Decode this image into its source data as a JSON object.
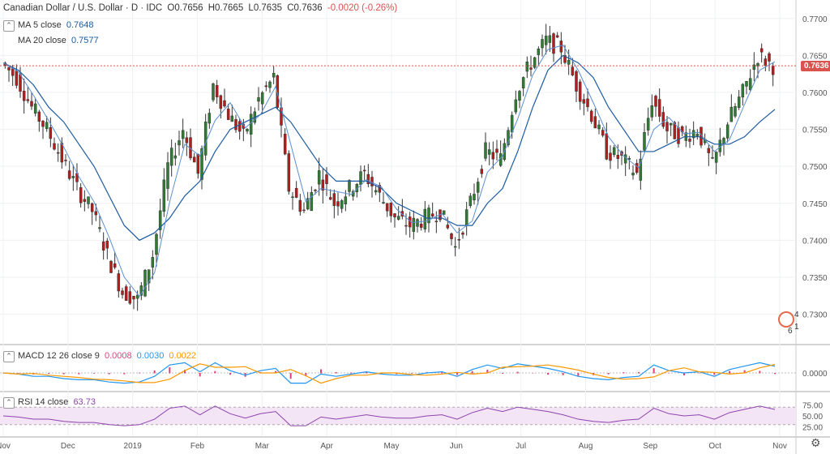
{
  "header": {
    "symbol": "Canadian Dollar / U.S. Dollar · D · IDC",
    "open": "O0.7656",
    "high": "H0.7665",
    "low": "L0.7635",
    "close": "C0.7636",
    "change": "-0.0020 (-0.26%)"
  },
  "indicators": {
    "ma5": {
      "label": "MA  5 close",
      "value": "0.7648",
      "color": "#1c5aa0"
    },
    "ma20": {
      "label": "MA  20 close",
      "value": "0.7577",
      "color": "#1c5aa0"
    },
    "macd": {
      "label": "MACD  12  26  close  9",
      "hist": "0.0008",
      "macd": "0.0030",
      "signal": "0.0022",
      "hist_color": "#e0407a",
      "macd_color": "#2196f3",
      "signal_color": "#ff9800"
    },
    "rsi": {
      "label": "RSI  14  close",
      "value": "63.73",
      "color": "#8e44ad"
    }
  },
  "price_tag": "0.7636",
  "events": {
    "a": "4",
    "b": "6",
    "c": "1"
  },
  "chart_data": {
    "type": "candlestick",
    "title": "Canadian Dollar / U.S. Dollar · D · IDC",
    "ylim": [
      0.726,
      0.7725
    ],
    "y_ticks": [
      "0.7700",
      "0.7650",
      "0.7600",
      "0.7550",
      "0.7500",
      "0.7450",
      "0.7400",
      "0.7350",
      "0.7300"
    ],
    "x_ticks": [
      "Nov",
      "Dec",
      "2019",
      "Feb",
      "Mar",
      "Apr",
      "May",
      "Jun",
      "Jul",
      "Aug",
      "Sep",
      "Oct",
      "Nov"
    ],
    "last_price": 0.7636,
    "close_path": [
      [
        "Nov",
        0.764
      ],
      [
        "Nov",
        0.762
      ],
      [
        "Nov",
        0.758
      ],
      [
        "Dec",
        0.755
      ],
      [
        "Dec",
        0.751
      ],
      [
        "Dec",
        0.747
      ],
      [
        "Dec",
        0.744
      ],
      [
        "Dec",
        0.738
      ],
      [
        "Dec",
        0.733
      ],
      [
        "2019",
        0.732
      ],
      [
        "2019",
        0.738
      ],
      [
        "2019",
        0.75
      ],
      [
        "2019",
        0.755
      ],
      [
        "Feb",
        0.749
      ],
      [
        "Feb",
        0.761
      ],
      [
        "Feb",
        0.757
      ],
      [
        "Feb",
        0.754
      ],
      [
        "Feb",
        0.759
      ],
      [
        "Mar",
        0.762
      ],
      [
        "Mar",
        0.747
      ],
      [
        "Mar",
        0.744
      ],
      [
        "Mar",
        0.749
      ],
      [
        "Apr",
        0.745
      ],
      [
        "Apr",
        0.747
      ],
      [
        "Apr",
        0.749
      ],
      [
        "Apr",
        0.746
      ],
      [
        "May",
        0.743
      ],
      [
        "May",
        0.742
      ],
      [
        "May",
        0.743
      ],
      [
        "May",
        0.744
      ],
      [
        "Jun",
        0.739
      ],
      [
        "Jun",
        0.745
      ],
      [
        "Jun",
        0.752
      ],
      [
        "Jun",
        0.751
      ],
      [
        "Jul",
        0.76
      ],
      [
        "Jul",
        0.764
      ],
      [
        "Jul",
        0.767
      ],
      [
        "Jul",
        0.766
      ],
      [
        "Aug",
        0.761
      ],
      [
        "Aug",
        0.757
      ],
      [
        "Aug",
        0.752
      ],
      [
        "Aug",
        0.751
      ],
      [
        "Sep",
        0.749
      ],
      [
        "Sep",
        0.759
      ],
      [
        "Sep",
        0.755
      ],
      [
        "Sep",
        0.754
      ],
      [
        "Oct",
        0.755
      ],
      [
        "Oct",
        0.75
      ],
      [
        "Oct",
        0.756
      ],
      [
        "Oct",
        0.76
      ],
      [
        "Nov",
        0.765
      ],
      [
        "Nov",
        0.7636
      ]
    ],
    "ma20_path": [
      [
        "Nov",
        0.764
      ],
      [
        "Nov",
        0.763
      ],
      [
        "Nov",
        0.761
      ],
      [
        "Dec",
        0.758
      ],
      [
        "Dec",
        0.756
      ],
      [
        "Dec",
        0.753
      ],
      [
        "Dec",
        0.75
      ],
      [
        "Dec",
        0.746
      ],
      [
        "Dec",
        0.742
      ],
      [
        "2019",
        0.74
      ],
      [
        "2019",
        0.741
      ],
      [
        "2019",
        0.743
      ],
      [
        "2019",
        0.746
      ],
      [
        "Feb",
        0.748
      ],
      [
        "Feb",
        0.752
      ],
      [
        "Feb",
        0.755
      ],
      [
        "Feb",
        0.756
      ],
      [
        "Feb",
        0.757
      ],
      [
        "Mar",
        0.758
      ],
      [
        "Mar",
        0.756
      ],
      [
        "Mar",
        0.753
      ],
      [
        "Mar",
        0.75
      ],
      [
        "Apr",
        0.748
      ],
      [
        "Apr",
        0.748
      ],
      [
        "Apr",
        0.748
      ],
      [
        "Apr",
        0.747
      ],
      [
        "May",
        0.745
      ],
      [
        "May",
        0.744
      ],
      [
        "May",
        0.743
      ],
      [
        "May",
        0.743
      ],
      [
        "Jun",
        0.742
      ],
      [
        "Jun",
        0.742
      ],
      [
        "Jun",
        0.745
      ],
      [
        "Jun",
        0.747
      ],
      [
        "Jul",
        0.752
      ],
      [
        "Jul",
        0.758
      ],
      [
        "Jul",
        0.763
      ],
      [
        "Jul",
        0.765
      ],
      [
        "Aug",
        0.764
      ],
      [
        "Aug",
        0.762
      ],
      [
        "Aug",
        0.758
      ],
      [
        "Aug",
        0.755
      ],
      [
        "Sep",
        0.752
      ],
      [
        "Sep",
        0.752
      ],
      [
        "Sep",
        0.753
      ],
      [
        "Sep",
        0.754
      ],
      [
        "Oct",
        0.754
      ],
      [
        "Oct",
        0.753
      ],
      [
        "Oct",
        0.753
      ],
      [
        "Oct",
        0.754
      ],
      [
        "Nov",
        0.756
      ],
      [
        "Nov",
        0.7577
      ]
    ],
    "macd_axis": "0.0000",
    "rsi_axis": [
      "75.00",
      "50.00",
      "25.00"
    ]
  }
}
